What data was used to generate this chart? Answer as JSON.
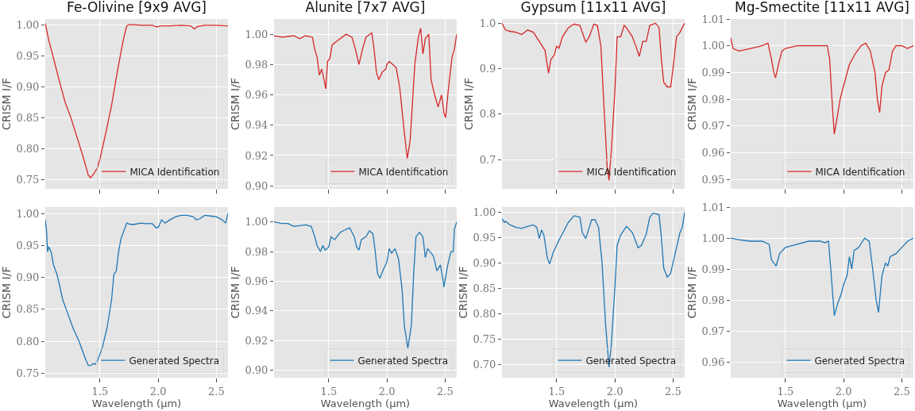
{
  "chart_data": [
    {
      "type": "line",
      "title": "Fe-Olivine [9x9 AVG]",
      "ylabel": "CRISM I/F",
      "xlim": [
        1.03,
        2.6
      ],
      "xticks": [
        {
          "value": 1.5,
          "label": null
        },
        {
          "value": 2,
          "label": null
        },
        {
          "value": 2.5,
          "label": null
        }
      ],
      "ylim": [
        0.735,
        1.009
      ],
      "yticks": [
        {
          "value": 0.75,
          "label": "0.75"
        },
        {
          "value": 0.8,
          "label": "0.80"
        },
        {
          "value": 0.85,
          "label": "0.85"
        },
        {
          "value": 0.9,
          "label": "0.90"
        },
        {
          "value": 0.95,
          "label": "0.95"
        },
        {
          "value": 1,
          "label": "1.00"
        }
      ],
      "grid": true,
      "legend": "bottom right",
      "tick_labels": "y",
      "series": [
        {
          "name": "MICA Identification",
          "color": "#d62728",
          "x": [
            1.03,
            1.06,
            1.1,
            1.15,
            1.2,
            1.25,
            1.3,
            1.35,
            1.38,
            1.4,
            1.42,
            1.45,
            1.48,
            1.5,
            1.55,
            1.6,
            1.65,
            1.7,
            1.73,
            1.75,
            1.8,
            1.85,
            1.9,
            1.95,
            1.99,
            2.02,
            2.1,
            2.2,
            2.28,
            2.31,
            2.34,
            2.4,
            2.5,
            2.6
          ],
          "values": [
            1.002,
            0.975,
            0.946,
            0.91,
            0.875,
            0.85,
            0.82,
            0.79,
            0.77,
            0.757,
            0.753,
            0.76,
            0.77,
            0.783,
            0.825,
            0.87,
            0.925,
            0.975,
            0.998,
            1.0,
            1.0,
            0.999,
            0.999,
            0.999,
            0.996,
            0.998,
            0.998,
            0.999,
            0.998,
            0.993,
            0.997,
            0.999,
            0.999,
            0.998
          ]
        }
      ]
    },
    {
      "type": "line",
      "title": "Alunite [7x7 AVG]",
      "ylabel": "CRISM I/F",
      "xlim": [
        1.03,
        2.6
      ],
      "xticks": [
        {
          "value": 1.5,
          "label": null
        },
        {
          "value": 2,
          "label": null
        },
        {
          "value": 2.5,
          "label": null
        }
      ],
      "ylim": [
        0.898,
        1.01
      ],
      "yticks": [
        {
          "value": 0.9,
          "label": "0.90"
        },
        0.92,
        0.94,
        0.96,
        0.98,
        {
          "value": 1,
          "label": "1.00"
        }
      ],
      "grid": true,
      "legend": "bottom right",
      "tick_labels": "y",
      "series": [
        {
          "name": "MICA Identification",
          "color": "#d62728",
          "x": [
            1.03,
            1.1,
            1.2,
            1.25,
            1.3,
            1.36,
            1.38,
            1.4,
            1.42,
            1.44,
            1.46,
            1.475,
            1.49,
            1.51,
            1.53,
            1.58,
            1.65,
            1.7,
            1.73,
            1.76,
            1.79,
            1.82,
            1.87,
            1.89,
            1.91,
            1.93,
            1.96,
            1.99,
            2.0,
            2.02,
            2.05,
            2.08,
            2.11,
            2.13,
            2.15,
            2.175,
            2.2,
            2.22,
            2.24,
            2.27,
            2.29,
            2.31,
            2.33,
            2.36,
            2.38,
            2.41,
            2.44,
            2.47,
            2.49,
            2.505,
            2.53,
            2.56,
            2.58,
            2.6
          ],
          "values": [
            0.999,
            0.998,
            0.999,
            0.997,
            0.999,
            0.998,
            0.99,
            0.985,
            0.973,
            0.977,
            0.97,
            0.964,
            0.982,
            0.984,
            0.993,
            0.996,
            1.0,
            0.998,
            0.99,
            0.98,
            0.99,
            0.998,
            1.001,
            0.99,
            0.975,
            0.97,
            0.975,
            0.977,
            0.98,
            0.982,
            0.98,
            0.978,
            0.965,
            0.95,
            0.935,
            0.918,
            0.93,
            0.955,
            0.98,
            0.998,
            1.004,
            0.987,
            0.997,
            1.0,
            0.97,
            0.96,
            0.952,
            0.96,
            0.948,
            0.945,
            0.965,
            0.985,
            0.99,
            1.0
          ]
        }
      ]
    },
    {
      "type": "line",
      "title": "Gypsum [11x11 AVG]",
      "ylabel": "CRISM I/F",
      "xlim": [
        1.03,
        2.6
      ],
      "xticks": [
        {
          "value": 1.5,
          "label": null
        },
        {
          "value": 2,
          "label": null
        },
        {
          "value": 2.5,
          "label": null
        }
      ],
      "ylim": [
        0.636,
        1.009
      ],
      "yticks": [
        0.7,
        0.8,
        0.9,
        {
          "value": 1,
          "label": "1.0"
        }
      ],
      "grid": true,
      "legend": "bottom right",
      "tick_labels": "y",
      "series": [
        {
          "name": "MICA Identification",
          "color": "#d62728",
          "x": [
            1.03,
            1.06,
            1.1,
            1.15,
            1.2,
            1.25,
            1.3,
            1.35,
            1.4,
            1.43,
            1.45,
            1.48,
            1.5,
            1.52,
            1.55,
            1.6,
            1.65,
            1.7,
            1.75,
            1.78,
            1.82,
            1.85,
            1.88,
            1.91,
            1.935,
            1.95,
            1.97,
            2.0,
            2.02,
            2.05,
            2.08,
            2.1,
            2.15,
            2.18,
            2.21,
            2.24,
            2.27,
            2.3,
            2.35,
            2.38,
            2.4,
            2.42,
            2.45,
            2.48,
            2.5,
            2.53,
            2.56,
            2.6
          ],
          "values": [
            1.0,
            0.985,
            0.982,
            0.98,
            0.975,
            0.985,
            0.98,
            0.96,
            0.94,
            0.89,
            0.92,
            0.93,
            0.95,
            0.945,
            0.97,
            0.99,
            0.998,
            0.995,
            0.958,
            0.97,
            0.998,
            0.995,
            0.95,
            0.8,
            0.68,
            0.655,
            0.72,
            0.85,
            0.97,
            0.97,
            0.995,
            0.99,
            0.97,
            0.95,
            0.927,
            0.96,
            0.96,
            0.995,
            1.0,
            0.99,
            0.92,
            0.87,
            0.86,
            0.86,
            0.9,
            0.97,
            0.98,
            1.0
          ]
        }
      ]
    },
    {
      "type": "line",
      "title": "Mg-Smectite [11x11 AVG]",
      "ylabel": "CRISM I/F",
      "xlim": [
        1.03,
        2.6
      ],
      "xticks": [
        {
          "value": 1.5,
          "label": null
        },
        {
          "value": 2,
          "label": null
        },
        {
          "value": 2.5,
          "label": null
        }
      ],
      "ylim": [
        0.9465,
        1.01
      ],
      "yticks": [
        0.95,
        0.96,
        0.97,
        0.98,
        0.99,
        {
          "value": 1,
          "label": "1.00"
        },
        1.01
      ],
      "grid": true,
      "legend": "bottom right",
      "tick_labels": "y",
      "series": [
        {
          "name": "MICA Identification",
          "color": "#d62728",
          "x": [
            1.03,
            1.05,
            1.1,
            1.2,
            1.3,
            1.35,
            1.38,
            1.4,
            1.415,
            1.44,
            1.47,
            1.5,
            1.6,
            1.7,
            1.8,
            1.86,
            1.88,
            1.9,
            1.92,
            1.94,
            1.97,
            2.0,
            2.05,
            2.1,
            2.15,
            2.19,
            2.23,
            2.27,
            2.29,
            2.31,
            2.33,
            2.36,
            2.39,
            2.42,
            2.45,
            2.5,
            2.55,
            2.6
          ],
          "values": [
            1.003,
            0.999,
            0.998,
            0.999,
            1.0,
            1.001,
            0.995,
            0.99,
            0.988,
            0.993,
            0.998,
            0.999,
            1.0,
            1.0,
            1.0,
            1.0,
            0.995,
            0.98,
            0.967,
            0.972,
            0.98,
            0.985,
            0.993,
            0.997,
            1.0,
            1.001,
            0.998,
            0.99,
            0.98,
            0.975,
            0.985,
            0.99,
            0.991,
            0.998,
            1.0,
            1.0,
            0.999,
            1.0
          ]
        }
      ]
    },
    {
      "type": "line",
      "xlabel": "Wavelength (μm)",
      "ylabel": "CRISM I/F",
      "xlim": [
        1.03,
        2.6
      ],
      "xticks": [
        {
          "value": 1.5,
          "label": "1.5"
        },
        {
          "value": 2,
          "label": "2.0"
        },
        {
          "value": 2.5,
          "label": "2.5"
        }
      ],
      "ylim": [
        0.743,
        1.01
      ],
      "yticks": [
        {
          "value": 0.75,
          "label": "0.75"
        },
        {
          "value": 0.8,
          "label": "0.80"
        },
        {
          "value": 0.85,
          "label": "0.85"
        },
        {
          "value": 0.9,
          "label": "0.90"
        },
        {
          "value": 0.95,
          "label": "0.95"
        },
        {
          "value": 1,
          "label": "1.00"
        }
      ],
      "grid": true,
      "legend": "bottom right",
      "series": [
        {
          "name": "Generated Spectra",
          "color": "#1f77b4",
          "x": [
            1.03,
            1.04,
            1.05,
            1.06,
            1.08,
            1.1,
            1.13,
            1.15,
            1.18,
            1.22,
            1.27,
            1.32,
            1.37,
            1.4,
            1.42,
            1.44,
            1.46,
            1.48,
            1.52,
            1.56,
            1.6,
            1.62,
            1.64,
            1.66,
            1.68,
            1.7,
            1.73,
            1.76,
            1.8,
            1.85,
            1.9,
            1.95,
            1.98,
            2.0,
            2.03,
            2.06,
            2.1,
            2.15,
            2.2,
            2.25,
            2.3,
            2.33,
            2.36,
            2.4,
            2.45,
            2.5,
            2.55,
            2.58,
            2.6
          ],
          "values": [
            0.99,
            0.975,
            0.94,
            0.948,
            0.94,
            0.92,
            0.905,
            0.89,
            0.865,
            0.845,
            0.82,
            0.8,
            0.775,
            0.762,
            0.762,
            0.765,
            0.764,
            0.77,
            0.79,
            0.82,
            0.865,
            0.905,
            0.91,
            0.94,
            0.96,
            0.97,
            0.985,
            0.983,
            0.983,
            0.985,
            0.984,
            0.984,
            0.978,
            0.978,
            0.99,
            0.985,
            0.99,
            0.995,
            0.997,
            0.997,
            0.995,
            0.99,
            0.992,
            0.997,
            0.996,
            0.995,
            0.99,
            0.985,
            1.0
          ]
        }
      ]
    },
    {
      "type": "line",
      "xlabel": "Wavelength (μm)",
      "ylabel": "CRISM I/F",
      "xlim": [
        1.03,
        2.6
      ],
      "xticks": [
        {
          "value": 1.5,
          "label": "1.5"
        },
        {
          "value": 2,
          "label": "2.0"
        },
        {
          "value": 2.5,
          "label": "2.5"
        }
      ],
      "ylim": [
        0.895,
        1.01
      ],
      "yticks": [
        {
          "value": 0.9,
          "label": "0.90"
        },
        0.92,
        0.94,
        0.96,
        0.98,
        {
          "value": 1,
          "label": "1.00"
        }
      ],
      "grid": true,
      "legend": "bottom right",
      "series": [
        {
          "name": "Generated Spectra",
          "color": "#1f77b4",
          "x": [
            1.03,
            1.1,
            1.15,
            1.2,
            1.3,
            1.35,
            1.38,
            1.4,
            1.43,
            1.45,
            1.47,
            1.5,
            1.52,
            1.55,
            1.6,
            1.65,
            1.68,
            1.72,
            1.74,
            1.76,
            1.78,
            1.82,
            1.85,
            1.88,
            1.9,
            1.92,
            1.94,
            1.97,
            2.0,
            2.02,
            2.04,
            2.07,
            2.1,
            2.13,
            2.15,
            2.18,
            2.21,
            2.23,
            2.25,
            2.28,
            2.31,
            2.33,
            2.35,
            2.4,
            2.43,
            2.46,
            2.48,
            2.49,
            2.52,
            2.55,
            2.57,
            2.58,
            2.6
          ],
          "values": [
            1.0,
            0.999,
            0.999,
            0.997,
            0.998,
            0.997,
            0.99,
            0.984,
            0.98,
            0.984,
            0.981,
            0.983,
            0.99,
            0.988,
            0.993,
            0.995,
            0.996,
            0.99,
            0.983,
            0.981,
            0.988,
            0.99,
            0.994,
            0.992,
            0.98,
            0.965,
            0.962,
            0.968,
            0.973,
            0.982,
            0.979,
            0.982,
            0.975,
            0.955,
            0.93,
            0.915,
            0.93,
            0.965,
            0.99,
            0.993,
            0.99,
            0.976,
            0.982,
            0.977,
            0.967,
            0.971,
            0.962,
            0.956,
            0.97,
            0.98,
            0.98,
            0.995,
            1.0
          ]
        }
      ]
    },
    {
      "type": "line",
      "xlabel": "Wavelength (μm)",
      "ylabel": "CRISM I/F",
      "xlim": [
        1.03,
        2.6
      ],
      "xticks": [
        {
          "value": 1.5,
          "label": "1.5"
        },
        {
          "value": 2,
          "label": "2.0"
        },
        {
          "value": 2.5,
          "label": "2.5"
        }
      ],
      "ylim": [
        0.674,
        1.01
      ],
      "yticks": [
        {
          "value": 0.7,
          "label": "0.70"
        },
        0.75,
        {
          "value": 0.8,
          "label": "0.80"
        },
        0.85,
        {
          "value": 0.9,
          "label": "0.90"
        },
        0.95,
        {
          "value": 1,
          "label": "1.00"
        }
      ],
      "grid": true,
      "legend": "bottom right",
      "series": [
        {
          "name": "Generated Spectra",
          "color": "#1f77b4",
          "x": [
            1.03,
            1.05,
            1.06,
            1.1,
            1.15,
            1.2,
            1.25,
            1.3,
            1.33,
            1.35,
            1.37,
            1.39,
            1.42,
            1.44,
            1.47,
            1.52,
            1.56,
            1.6,
            1.65,
            1.7,
            1.72,
            1.75,
            1.78,
            1.8,
            1.83,
            1.86,
            1.89,
            1.92,
            1.95,
            1.97,
            2.0,
            2.02,
            2.05,
            2.1,
            2.15,
            2.2,
            2.23,
            2.27,
            2.3,
            2.33,
            2.38,
            2.4,
            2.42,
            2.45,
            2.48,
            2.52,
            2.56,
            2.58,
            2.6
          ],
          "values": [
            0.987,
            0.98,
            0.982,
            0.975,
            0.97,
            0.968,
            0.972,
            0.975,
            0.97,
            0.948,
            0.965,
            0.955,
            0.91,
            0.898,
            0.92,
            0.945,
            0.962,
            0.98,
            0.993,
            0.99,
            0.96,
            0.948,
            0.97,
            0.985,
            0.985,
            0.97,
            0.9,
            0.78,
            0.695,
            0.74,
            0.85,
            0.935,
            0.955,
            0.972,
            0.96,
            0.93,
            0.935,
            0.957,
            0.99,
            0.998,
            0.995,
            0.95,
            0.89,
            0.872,
            0.88,
            0.92,
            0.96,
            0.97,
            1.0
          ]
        }
      ]
    },
    {
      "type": "line",
      "xlabel": "Wavelength (μm)",
      "ylabel": "CRISM I/F",
      "xlim": [
        1.03,
        2.6
      ],
      "xticks": [
        {
          "value": 1.5,
          "label": "1.5"
        },
        {
          "value": 2,
          "label": "2.0"
        },
        {
          "value": 2.5,
          "label": "2.5"
        }
      ],
      "ylim": [
        0.955,
        1.01
      ],
      "yticks": [
        0.96,
        0.97,
        0.98,
        0.99,
        {
          "value": 1,
          "label": "1.00"
        },
        1.01
      ],
      "grid": true,
      "legend": "bottom right",
      "series": [
        {
          "name": "Generated Spectra",
          "color": "#1f77b4",
          "x": [
            1.03,
            1.1,
            1.2,
            1.3,
            1.36,
            1.38,
            1.4,
            1.42,
            1.45,
            1.5,
            1.6,
            1.7,
            1.8,
            1.84,
            1.87,
            1.89,
            1.91,
            1.92,
            1.95,
            1.98,
            2.0,
            2.03,
            2.05,
            2.07,
            2.09,
            2.13,
            2.18,
            2.22,
            2.25,
            2.28,
            2.3,
            2.33,
            2.36,
            2.38,
            2.4,
            2.45,
            2.5,
            2.55,
            2.6
          ],
          "values": [
            1.0,
            0.9995,
            0.999,
            0.999,
            0.998,
            0.993,
            0.992,
            0.991,
            0.995,
            0.997,
            0.998,
            0.999,
            0.999,
            0.9985,
            0.999,
            0.99,
            0.98,
            0.975,
            0.979,
            0.982,
            0.985,
            0.988,
            0.994,
            0.99,
            0.996,
            0.997,
            1.0,
            0.999,
            0.99,
            0.98,
            0.976,
            0.988,
            0.992,
            0.991,
            0.994,
            0.995,
            0.997,
            0.999,
            1.0
          ]
        }
      ]
    }
  ]
}
